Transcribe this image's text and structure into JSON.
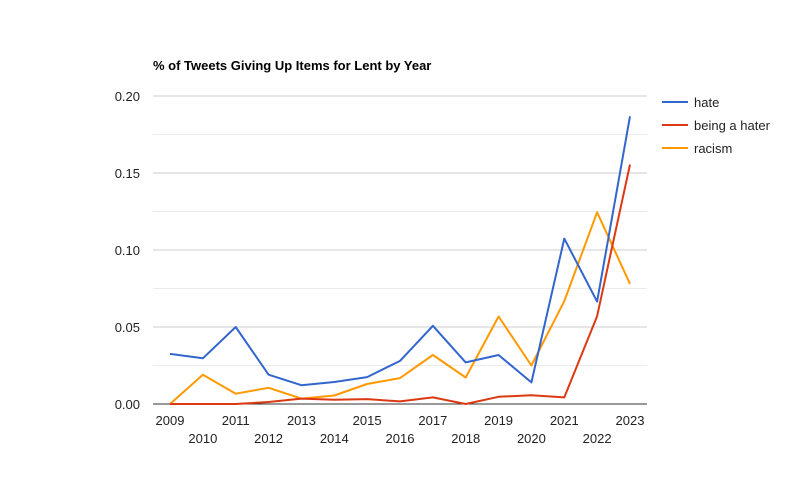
{
  "chart_data": {
    "type": "line",
    "title": "% of Tweets Giving Up Items for Lent by Year",
    "xlabel": "",
    "ylabel": "",
    "categories": [
      "2009",
      "2010",
      "2011",
      "2012",
      "2013",
      "2014",
      "2015",
      "2016",
      "2017",
      "2018",
      "2019",
      "2020",
      "2021",
      "2022",
      "2023"
    ],
    "ylim": [
      0,
      0.2
    ],
    "yticks": [
      "0.00",
      "0.05",
      "0.10",
      "0.15",
      "0.20"
    ],
    "grid": true,
    "legend_position": "right",
    "series": [
      {
        "name": "hate",
        "color": "#3366cc",
        "values": [
          0.0325,
          0.0297,
          0.05,
          0.019,
          0.0122,
          0.0143,
          0.0175,
          0.028,
          0.0508,
          0.027,
          0.0318,
          0.014,
          0.1074,
          0.0665,
          0.1868
        ]
      },
      {
        "name": "being a hater",
        "color": "#dc3912",
        "values": [
          0.0,
          0.0,
          0.0,
          0.0013,
          0.0035,
          0.0028,
          0.0032,
          0.0017,
          0.0043,
          0.0,
          0.0047,
          0.0057,
          0.0043,
          0.057,
          0.1555
        ]
      },
      {
        "name": "racism",
        "color": "#ff9900",
        "values": [
          0.0,
          0.019,
          0.0067,
          0.0105,
          0.0035,
          0.0055,
          0.013,
          0.0168,
          0.0318,
          0.0172,
          0.0568,
          0.025,
          0.0668,
          0.1245,
          0.078
        ]
      }
    ]
  }
}
